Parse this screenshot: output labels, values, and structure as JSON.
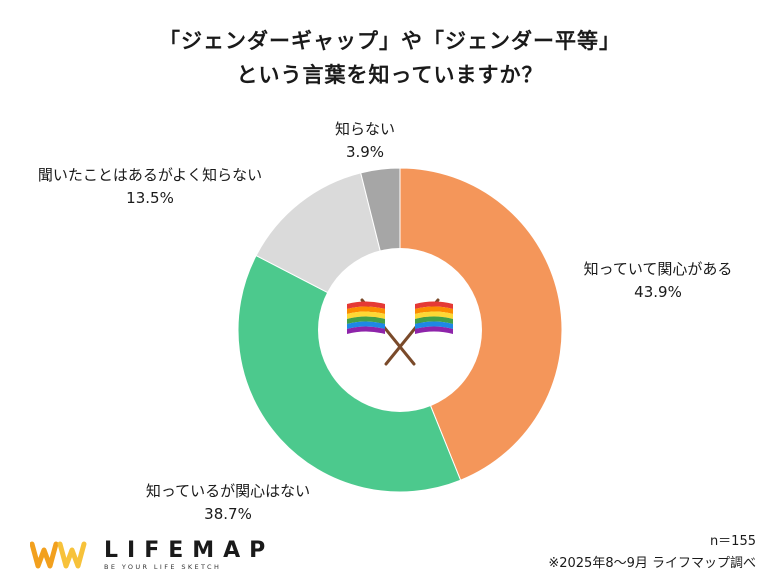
{
  "title": {
    "line1": "「ジェンダーギャップ」や「ジェンダー平等」",
    "line2": "という言葉を知っていますか？"
  },
  "chart_data": {
    "type": "pie",
    "title": "「ジェンダーギャップ」や「ジェンダー平等」という言葉を知っていますか？",
    "slices": [
      {
        "label": "知っていて関心がある",
        "value": 43.9,
        "display": "43.9%",
        "color": "#F4965A"
      },
      {
        "label": "知っているが関心はない",
        "value": 38.7,
        "display": "38.7%",
        "color": "#4CC98D"
      },
      {
        "label": "聞いたことはあるがよく知らない",
        "value": 13.5,
        "display": "13.5%",
        "color": "#DADADA"
      },
      {
        "label": "知らない",
        "value": 3.9,
        "display": "3.9%",
        "color": "#A6A6A6"
      }
    ]
  },
  "footer": {
    "n": "n＝155",
    "source": "※2025年8〜9月 ライフマップ調べ"
  },
  "logo": {
    "name": "LIFEMAP",
    "tagline": "BE YOUR LIFE SKETCH",
    "colors": [
      "#F2A01E",
      "#F7C23A"
    ]
  },
  "center_icon": "crossed-rainbow-flags-icon"
}
